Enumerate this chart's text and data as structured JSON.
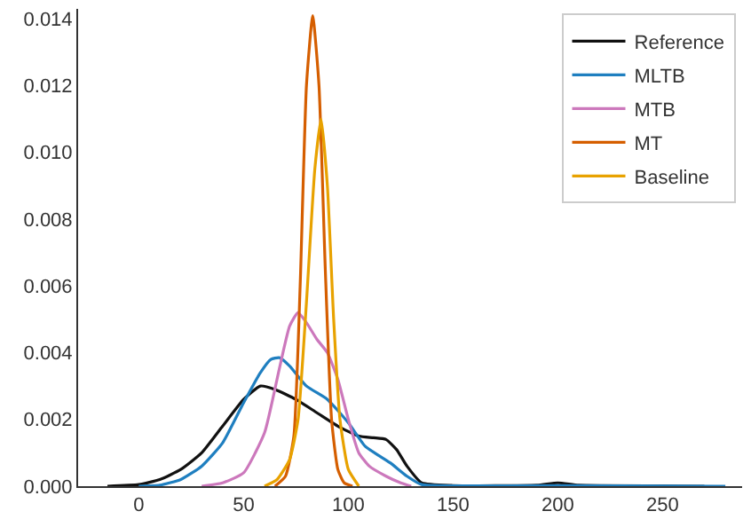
{
  "chart_data": {
    "type": "line",
    "xlim": [
      -29,
      288
    ],
    "ylim": [
      0,
      0.0143
    ],
    "xticks": [
      0,
      50,
      100,
      150,
      200,
      250
    ],
    "yticks": [
      {
        "value": 0,
        "label": "0.000"
      },
      {
        "value": 0.002,
        "label": "0.002"
      },
      {
        "value": 0.004,
        "label": "0.004"
      },
      {
        "value": 0.006,
        "label": "0.006"
      },
      {
        "value": 0.008,
        "label": "0.008"
      },
      {
        "value": 0.01,
        "label": "0.010"
      },
      {
        "value": 0.012,
        "label": "0.012"
      },
      {
        "value": 0.014,
        "label": "0.014"
      }
    ],
    "grid": false,
    "legend": "top right",
    "marker": "none",
    "line_style": "solid",
    "series": [
      {
        "name": "Reference",
        "color": "#111111",
        "x": [
          -15,
          0,
          10,
          20,
          30,
          40,
          50,
          58,
          65,
          75,
          85,
          95,
          105,
          112,
          118,
          123,
          128,
          135,
          150,
          190,
          200,
          210,
          250,
          270
        ],
        "values": [
          0,
          5e-05,
          0.0002,
          0.0005,
          0.001,
          0.0018,
          0.0026,
          0.003,
          0.0029,
          0.0026,
          0.0022,
          0.0018,
          0.0015,
          0.00145,
          0.0014,
          0.0011,
          0.0006,
          0.0001,
          2e-05,
          3e-05,
          0.0001,
          3e-05,
          1e-05,
          0
        ]
      },
      {
        "name": "MLTB",
        "color": "#1f7fc0",
        "x": [
          0,
          10,
          20,
          30,
          40,
          50,
          58,
          63,
          67,
          72,
          80,
          90,
          100,
          108,
          115,
          120,
          128,
          135,
          150,
          200,
          280
        ],
        "values": [
          0,
          3e-05,
          0.0002,
          0.0006,
          0.0013,
          0.0025,
          0.0034,
          0.0038,
          0.00385,
          0.0036,
          0.003,
          0.0026,
          0.0019,
          0.0012,
          0.0009,
          0.0007,
          0.0003,
          5e-05,
          1e-05,
          2e-05,
          0
        ]
      },
      {
        "name": "MTB",
        "color": "#cc78bc",
        "x": [
          30,
          40,
          50,
          60,
          67,
          72,
          76,
          80,
          85,
          90,
          95,
          100,
          105,
          110,
          118,
          125,
          130
        ],
        "values": [
          0,
          0.0001,
          0.0004,
          0.0016,
          0.0035,
          0.0048,
          0.0052,
          0.0049,
          0.0044,
          0.004,
          0.0032,
          0.002,
          0.001,
          0.0006,
          0.0003,
          0.0001,
          0
        ]
      },
      {
        "name": "MT",
        "color": "#d55e00",
        "x": [
          65,
          70,
          74,
          77,
          80,
          83,
          86,
          89,
          92,
          95,
          98,
          102
        ],
        "values": [
          0,
          0.0003,
          0.0015,
          0.006,
          0.012,
          0.0141,
          0.012,
          0.0065,
          0.002,
          0.0005,
          0.0001,
          0
        ]
      },
      {
        "name": "Baseline",
        "color": "#e8a200",
        "x": [
          60,
          66,
          72,
          76,
          80,
          84,
          87,
          90,
          93,
          96,
          100,
          105
        ],
        "values": [
          0,
          0.0002,
          0.0008,
          0.002,
          0.0055,
          0.0095,
          0.011,
          0.009,
          0.005,
          0.002,
          0.0005,
          0
        ]
      }
    ]
  }
}
